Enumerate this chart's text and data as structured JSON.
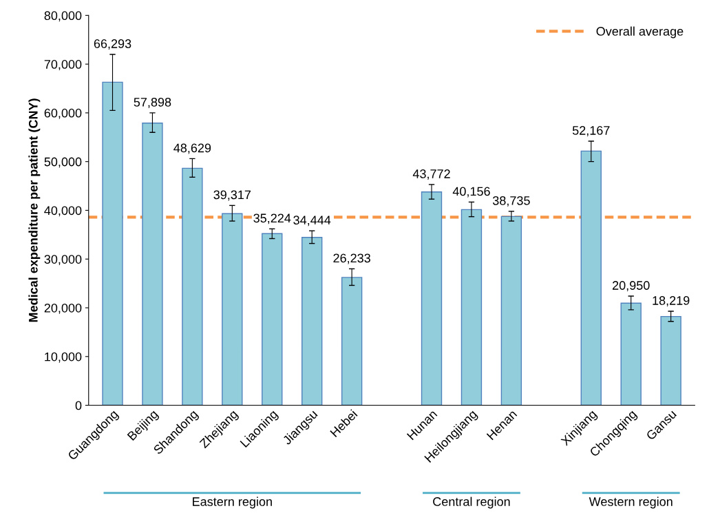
{
  "chart_data": {
    "type": "bar",
    "ylabel": "Medical expenditure per patient (CNY)",
    "categories": [
      "Guangdong",
      "Beijing",
      "Shandong",
      "Zhejiang",
      "Liaoning",
      "Jiangsu",
      "Hebei",
      null,
      "Hunan",
      "Heilongjiang",
      "Henan",
      null,
      "Xinjiang",
      "Chongqing",
      "Gansu"
    ],
    "values": [
      66293,
      57898,
      48629,
      39317,
      35224,
      34444,
      26233,
      null,
      43772,
      40156,
      38735,
      null,
      52167,
      20950,
      18219
    ],
    "value_labels": [
      "66,293",
      "57,898",
      "48,629",
      "39,317",
      "35,224",
      "34,444",
      "26,233",
      null,
      "43,772",
      "40,156",
      "38,735",
      null,
      "52,167",
      "20,950",
      "18,219"
    ],
    "errors": [
      [
        60500,
        72000
      ],
      [
        56000,
        60000
      ],
      [
        46800,
        50600
      ],
      [
        37800,
        41000
      ],
      [
        34200,
        36200
      ],
      [
        33200,
        35800
      ],
      [
        24600,
        28000
      ],
      null,
      [
        42300,
        45300
      ],
      [
        38700,
        41700
      ],
      [
        37800,
        39800
      ],
      null,
      [
        50000,
        54200
      ],
      [
        19600,
        22400
      ],
      [
        17200,
        19300
      ]
    ],
    "color": "#92cddc",
    "ylim": [
      0,
      80000
    ],
    "yticks": [
      {
        "value": 0,
        "label": "0"
      },
      {
        "value": 10000,
        "label": "10,000"
      },
      {
        "value": 20000,
        "label": "20,000"
      },
      {
        "value": 30000,
        "label": "30,000"
      },
      {
        "value": 40000,
        "label": "40,000"
      },
      {
        "value": 50000,
        "label": "50,000"
      },
      {
        "value": 60000,
        "label": "60,000"
      },
      {
        "value": 70000,
        "label": "70,000"
      },
      {
        "value": 80000,
        "label": "80,000"
      }
    ],
    "ref_lines": [
      {
        "axis": "y",
        "value": 38600,
        "label": "Overall average",
        "color": "#f79646",
        "line_style": "dashed"
      }
    ],
    "annotations": [
      "Eastern region",
      "Central region",
      "Western region"
    ],
    "legend": "top right",
    "grid": false
  }
}
